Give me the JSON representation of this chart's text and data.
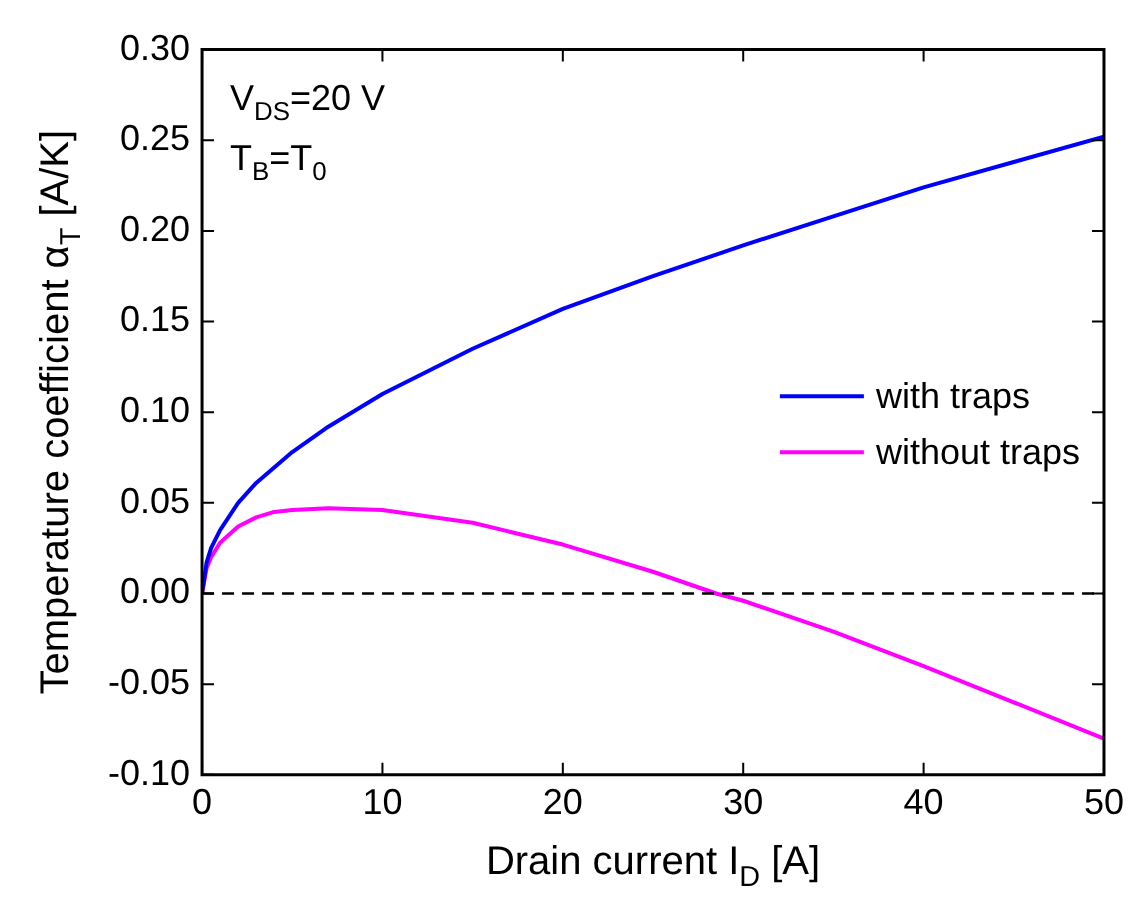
{
  "chart_data": {
    "type": "line",
    "xlabel": "Drain current I$_{D}$ [A]",
    "ylabel": "Temperature coefficient α$_{T}$ [A/K]",
    "annotations": [
      "V$_{DS}$=20 V",
      "T$_{B}$=T$_{0}$"
    ],
    "series": [
      {
        "name": "with traps",
        "color": "#0000ff",
        "x": [
          0,
          0.25,
          0.5,
          1,
          2,
          3,
          5,
          7,
          10,
          15,
          20,
          25,
          30,
          35,
          40,
          45,
          50
        ],
        "values": [
          0,
          0.017,
          0.025,
          0.035,
          0.05,
          0.061,
          0.078,
          0.092,
          0.11,
          0.135,
          0.157,
          0.175,
          0.192,
          0.208,
          0.224,
          0.238,
          0.252
        ]
      },
      {
        "name": "without traps",
        "color": "#ff00ff",
        "x": [
          0,
          0.25,
          0.5,
          1,
          2,
          3,
          4,
          5,
          7,
          10,
          15,
          20,
          25,
          28.5,
          30,
          35,
          40,
          45,
          50
        ],
        "values": [
          0,
          0.014,
          0.02,
          0.028,
          0.037,
          0.042,
          0.045,
          0.046,
          0.047,
          0.046,
          0.039,
          0.027,
          0.012,
          0,
          -0.004,
          -0.021,
          -0.04,
          -0.06,
          -0.08
        ]
      }
    ],
    "xlim": [
      0,
      50
    ],
    "xticks": [
      0,
      10,
      20,
      30,
      40,
      50
    ],
    "ylim": [
      -0.1,
      0.3
    ],
    "yticks": [
      {
        "value": -0.1,
        "label": "-0.10"
      },
      {
        "value": -0.05,
        "label": "-0.05"
      },
      {
        "value": 0,
        "label": "0.00"
      },
      {
        "value": 0.05,
        "label": "0.05"
      },
      {
        "value": 0.1,
        "label": "0.10"
      },
      {
        "value": 0.15,
        "label": "0.15"
      },
      {
        "value": 0.2,
        "label": "0.20"
      },
      {
        "value": 0.25,
        "label": "0.25"
      },
      {
        "value": 0.3,
        "label": "0.30"
      }
    ],
    "ref_lines": [
      {
        "axis": "y",
        "value": 0,
        "color": "#000000",
        "line_style": "dashed"
      }
    ],
    "legend": "right",
    "grid": false,
    "marker": "none",
    "line_style": "solid"
  }
}
